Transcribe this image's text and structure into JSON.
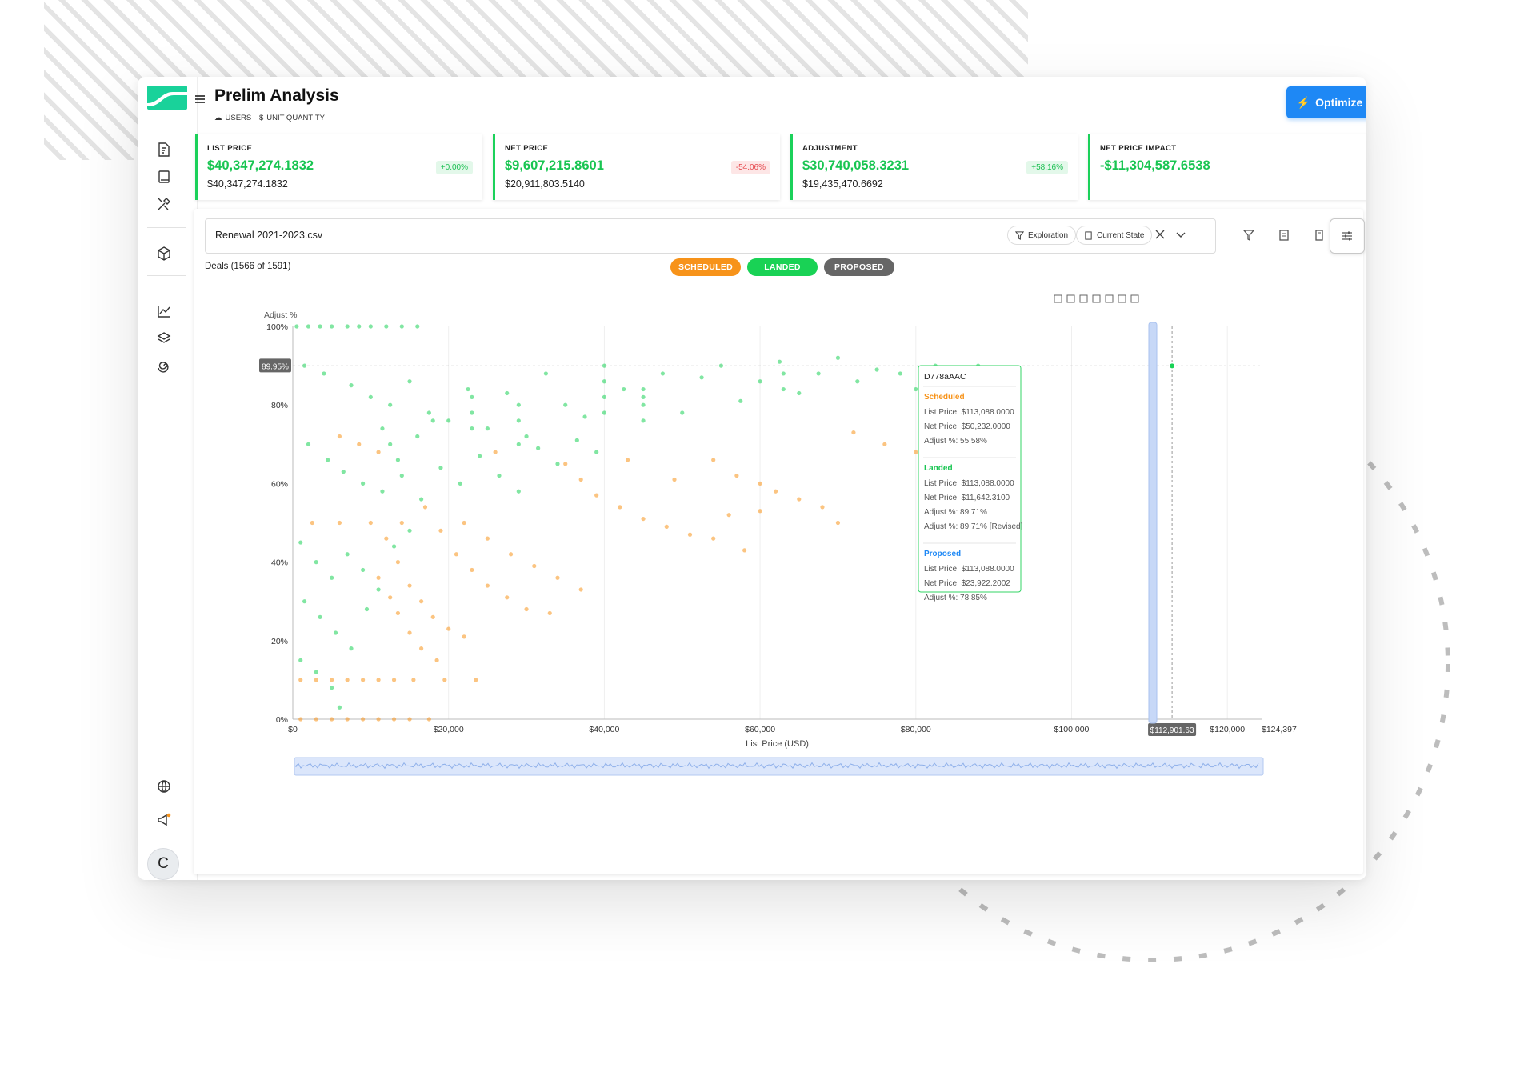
{
  "app": {
    "title": "Prelim Analysis",
    "sub_users": "USERS",
    "sub_unit": "UNIT QUANTITY",
    "optimize_label": "Optimize",
    "avatar_initial": "C",
    "brand_color": "#19c552",
    "accent_color": "#1e88f5"
  },
  "sidebar": {
    "icons": [
      "document-dollar-icon",
      "book-icon",
      "tools-icon",
      "box-icon",
      "line-chart-icon",
      "layers-icon",
      "spiral-icon",
      "globe-icon",
      "megaphone-icon"
    ]
  },
  "kpis": [
    {
      "label": "LIST PRICE",
      "value": "$40,347,274.1832",
      "sub": "$40,347,274.1832",
      "badge": "+0.00%",
      "badge_type": "green"
    },
    {
      "label": "NET PRICE",
      "value": "$9,607,215.8601",
      "sub": "$20,911,803.5140",
      "badge": "-54.06%",
      "badge_type": "red"
    },
    {
      "label": "ADJUSTMENT",
      "value": "$30,740,058.3231",
      "sub": "$19,435,470.6692",
      "badge": "+58.16%",
      "badge_type": "green"
    },
    {
      "label": "NET PRICE IMPACT",
      "value": "-$11,304,587.6538",
      "sub": "",
      "badge": "",
      "badge_type": ""
    }
  ],
  "toolbar": {
    "file_name": "Renewal 2021-2023.csv",
    "chip_exploration": "Exploration",
    "chip_current_state": "Current State"
  },
  "deals_label": "Deals (1566 of 1591)",
  "legend": [
    {
      "label": "SCHEDULED",
      "color": "#f7931a"
    },
    {
      "label": "LANDED",
      "color": "#19d255"
    },
    {
      "label": "PROPOSED",
      "color": "#6b6b6b"
    }
  ],
  "chart_data": {
    "type": "scatter",
    "xlabel": "List Price (USD)",
    "ylabel": "Adjust %",
    "xlim": [
      0,
      124397
    ],
    "ylim": [
      0,
      100
    ],
    "x_ticks": [
      "$0",
      "$20,000",
      "$40,000",
      "$60,000",
      "$80,000",
      "$100,000",
      "$120,000",
      "$124,397"
    ],
    "x_tick_values": [
      0,
      20000,
      40000,
      60000,
      80000,
      100000,
      120000,
      124397
    ],
    "y_ticks": [
      "0%",
      "20%",
      "40%",
      "60%",
      "80%",
      "100%"
    ],
    "y_tick_values": [
      0,
      20,
      40,
      60,
      80,
      100
    ],
    "crosshair": {
      "x": 112901.63,
      "y": 89.95,
      "x_label": "$112,901.63",
      "y_label": "89.95%"
    },
    "series": [
      {
        "name": "Scheduled",
        "color": "#f7931a",
        "points": [
          [
            1000,
            0
          ],
          [
            3000,
            0
          ],
          [
            5000,
            0
          ],
          [
            7000,
            0
          ],
          [
            9000,
            0
          ],
          [
            11000,
            0
          ],
          [
            13000,
            0
          ],
          [
            15000,
            0
          ],
          [
            17500,
            0
          ],
          [
            1000,
            10
          ],
          [
            3000,
            10
          ],
          [
            5000,
            10
          ],
          [
            7000,
            10
          ],
          [
            9000,
            10
          ],
          [
            11000,
            10
          ],
          [
            13000,
            10
          ],
          [
            15500,
            10
          ],
          [
            19500,
            10
          ],
          [
            23500,
            10
          ],
          [
            2500,
            50
          ],
          [
            6000,
            50
          ],
          [
            10000,
            50
          ],
          [
            14000,
            50
          ],
          [
            12000,
            46
          ],
          [
            13500,
            40
          ],
          [
            15000,
            34
          ],
          [
            16500,
            30
          ],
          [
            18000,
            26
          ],
          [
            20000,
            23
          ],
          [
            22000,
            21
          ],
          [
            11000,
            36
          ],
          [
            12500,
            31
          ],
          [
            13500,
            27
          ],
          [
            15000,
            22
          ],
          [
            16500,
            18
          ],
          [
            18500,
            15
          ],
          [
            17000,
            54
          ],
          [
            19000,
            48
          ],
          [
            21000,
            42
          ],
          [
            23000,
            38
          ],
          [
            25000,
            34
          ],
          [
            27500,
            31
          ],
          [
            30000,
            28
          ],
          [
            33000,
            27
          ],
          [
            22000,
            50
          ],
          [
            25000,
            46
          ],
          [
            28000,
            42
          ],
          [
            31000,
            39
          ],
          [
            34000,
            36
          ],
          [
            37000,
            33
          ],
          [
            35000,
            65
          ],
          [
            37000,
            61
          ],
          [
            39000,
            57
          ],
          [
            42000,
            54
          ],
          [
            45000,
            51
          ],
          [
            48000,
            49
          ],
          [
            51000,
            47
          ],
          [
            54000,
            46
          ],
          [
            58000,
            43
          ],
          [
            54000,
            66
          ],
          [
            57000,
            62
          ],
          [
            60000,
            60
          ],
          [
            62000,
            58
          ],
          [
            65000,
            56
          ],
          [
            68000,
            54
          ],
          [
            72000,
            73
          ],
          [
            76000,
            70
          ],
          [
            80000,
            68
          ],
          [
            85000,
            63
          ],
          [
            88000,
            63
          ],
          [
            6000,
            72
          ],
          [
            8500,
            70
          ],
          [
            11000,
            68
          ],
          [
            26000,
            68
          ],
          [
            43000,
            66
          ],
          [
            49000,
            61
          ],
          [
            56000,
            52
          ],
          [
            60000,
            53
          ],
          [
            70000,
            50
          ],
          [
            81000,
            45
          ]
        ]
      },
      {
        "name": "Landed",
        "color": "#19d255",
        "points": [
          [
            500,
            100
          ],
          [
            2000,
            100
          ],
          [
            3500,
            100
          ],
          [
            5000,
            100
          ],
          [
            7000,
            100
          ],
          [
            8500,
            100
          ],
          [
            10000,
            100
          ],
          [
            12000,
            100
          ],
          [
            14000,
            100
          ],
          [
            16000,
            100
          ],
          [
            1500,
            90
          ],
          [
            4000,
            88
          ],
          [
            7500,
            85
          ],
          [
            10000,
            82
          ],
          [
            12500,
            80
          ],
          [
            15000,
            86
          ],
          [
            17500,
            78
          ],
          [
            20000,
            76
          ],
          [
            22500,
            84
          ],
          [
            25000,
            74
          ],
          [
            27500,
            83
          ],
          [
            30000,
            72
          ],
          [
            32500,
            88
          ],
          [
            35000,
            80
          ],
          [
            37500,
            77
          ],
          [
            40000,
            90
          ],
          [
            42500,
            84
          ],
          [
            45000,
            82
          ],
          [
            47500,
            88
          ],
          [
            50000,
            78
          ],
          [
            52500,
            87
          ],
          [
            55000,
            90
          ],
          [
            57500,
            81
          ],
          [
            60000,
            86
          ],
          [
            62500,
            91
          ],
          [
            65000,
            83
          ],
          [
            67500,
            88
          ],
          [
            70000,
            92
          ],
          [
            72500,
            86
          ],
          [
            75000,
            89
          ],
          [
            78000,
            88
          ],
          [
            80000,
            84
          ],
          [
            82500,
            90
          ],
          [
            86000,
            88
          ],
          [
            88000,
            90
          ],
          [
            2000,
            70
          ],
          [
            4500,
            66
          ],
          [
            6500,
            63
          ],
          [
            9000,
            60
          ],
          [
            11500,
            58
          ],
          [
            14000,
            62
          ],
          [
            16500,
            56
          ],
          [
            19000,
            64
          ],
          [
            21500,
            60
          ],
          [
            24000,
            67
          ],
          [
            26500,
            62
          ],
          [
            29000,
            58
          ],
          [
            31500,
            69
          ],
          [
            34000,
            65
          ],
          [
            36500,
            71
          ],
          [
            39000,
            68
          ],
          [
            1000,
            45
          ],
          [
            3000,
            40
          ],
          [
            5000,
            36
          ],
          [
            7000,
            42
          ],
          [
            9000,
            38
          ],
          [
            11000,
            33
          ],
          [
            13000,
            44
          ],
          [
            15000,
            48
          ],
          [
            1500,
            30
          ],
          [
            3500,
            26
          ],
          [
            5500,
            22
          ],
          [
            7500,
            18
          ],
          [
            9500,
            28
          ],
          [
            1000,
            15
          ],
          [
            3000,
            12
          ],
          [
            5000,
            8
          ],
          [
            6000,
            3
          ],
          [
            11500,
            74
          ],
          [
            12500,
            70
          ],
          [
            13500,
            66
          ],
          [
            16000,
            72
          ],
          [
            18000,
            76
          ],
          [
            23000,
            82
          ],
          [
            23000,
            78
          ],
          [
            23000,
            74
          ],
          [
            29000,
            80
          ],
          [
            29000,
            76
          ],
          [
            29000,
            70
          ],
          [
            40000,
            86
          ],
          [
            40000,
            82
          ],
          [
            40000,
            78
          ],
          [
            45000,
            84
          ],
          [
            45000,
            80
          ],
          [
            45000,
            76
          ],
          [
            63000,
            88
          ],
          [
            63000,
            84
          ],
          [
            86000,
            77
          ]
        ]
      },
      {
        "name": "Proposed",
        "color": "#6b6b6b",
        "points": []
      }
    ]
  },
  "tooltip": {
    "title": "D778aAAC",
    "sections": [
      {
        "heading": "Scheduled",
        "color": "#f7931a",
        "rows": [
          "List Price: $113,088.0000",
          "Net Price: $50,232.0000",
          "Adjust %: 55.58%"
        ]
      },
      {
        "heading": "Landed",
        "color": "#19c552",
        "rows": [
          "List Price: $113,088.0000",
          "Net Price: $11,642.3100",
          "Adjust %: 89.71%",
          "Adjust %: 89.71% [Revised]"
        ]
      },
      {
        "heading": "Proposed",
        "color": "#1e88f5",
        "rows": [
          "List Price: $113,088.0000",
          "Net Price: $23,922.2002",
          "Adjust %: 78.85%"
        ]
      }
    ]
  }
}
